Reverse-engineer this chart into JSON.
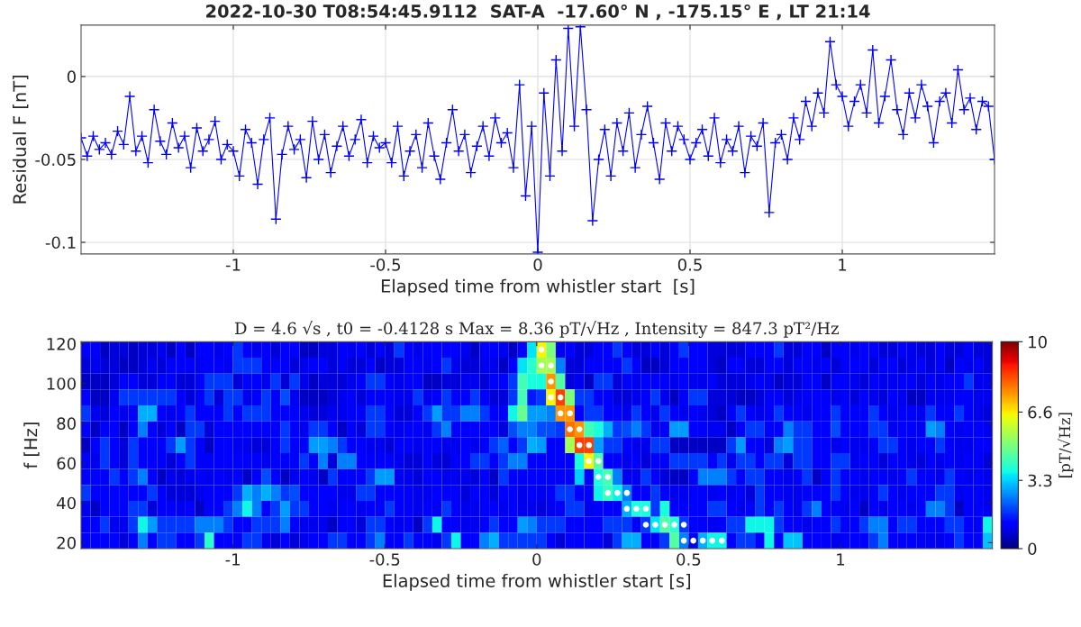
{
  "chart_data": [
    {
      "type": "line",
      "title": "2022-10-30 T08:54:45.9112  SAT-A  -17.60° N , -175.15° E , LT 21:14",
      "xlabel": "Elapsed time from whistler start  [s]",
      "ylabel": "Residual F [nT]",
      "x": [
        -1.5,
        -1.48,
        -1.46,
        -1.44,
        -1.42,
        -1.4,
        -1.38,
        -1.36,
        -1.34,
        -1.32,
        -1.3,
        -1.28,
        -1.26,
        -1.24,
        -1.22,
        -1.2,
        -1.18,
        -1.16,
        -1.14,
        -1.12,
        -1.1,
        -1.08,
        -1.06,
        -1.04,
        -1.02,
        -1.0,
        -0.98,
        -0.96,
        -0.94,
        -0.92,
        -0.9,
        -0.88,
        -0.86,
        -0.84,
        -0.82,
        -0.8,
        -0.78,
        -0.76,
        -0.74,
        -0.72,
        -0.7,
        -0.68,
        -0.66,
        -0.64,
        -0.62,
        -0.6,
        -0.58,
        -0.56,
        -0.54,
        -0.52,
        -0.5,
        -0.48,
        -0.46,
        -0.44,
        -0.42,
        -0.4,
        -0.38,
        -0.36,
        -0.34,
        -0.32,
        -0.3,
        -0.28,
        -0.26,
        -0.24,
        -0.22,
        -0.2,
        -0.18,
        -0.16,
        -0.14,
        -0.12,
        -0.1,
        -0.08,
        -0.06,
        -0.04,
        -0.02,
        0,
        0.02,
        0.04,
        0.06,
        0.08,
        0.1,
        0.12,
        0.14,
        0.16,
        0.18,
        0.2,
        0.22,
        0.24,
        0.26,
        0.28,
        0.3,
        0.32,
        0.34,
        0.36,
        0.38,
        0.4,
        0.42,
        0.44,
        0.46,
        0.48,
        0.5,
        0.52,
        0.54,
        0.56,
        0.58,
        0.6,
        0.62,
        0.64,
        0.66,
        0.68,
        0.7,
        0.72,
        0.74,
        0.76,
        0.78,
        0.8,
        0.82,
        0.84,
        0.86,
        0.88,
        0.9,
        0.92,
        0.94,
        0.96,
        0.98,
        1.0,
        1.02,
        1.04,
        1.06,
        1.08,
        1.1,
        1.12,
        1.14,
        1.16,
        1.18,
        1.2,
        1.22,
        1.24,
        1.26,
        1.28,
        1.3,
        1.32,
        1.34,
        1.36,
        1.38,
        1.4,
        1.42,
        1.44,
        1.46,
        1.48,
        1.5
      ],
      "series": [
        {
          "color": "#0000ff",
          "marker": "cross",
          "values": [
            -0.037,
            -0.048,
            -0.036,
            -0.044,
            -0.04,
            -0.047,
            -0.033,
            -0.041,
            -0.012,
            -0.045,
            -0.036,
            -0.052,
            -0.02,
            -0.039,
            -0.047,
            -0.028,
            -0.043,
            -0.036,
            -0.055,
            -0.031,
            -0.045,
            -0.038,
            -0.027,
            -0.05,
            -0.041,
            -0.045,
            -0.06,
            -0.032,
            -0.04,
            -0.065,
            -0.038,
            -0.025,
            -0.086,
            -0.047,
            -0.03,
            -0.044,
            -0.038,
            -0.061,
            -0.027,
            -0.05,
            -0.035,
            -0.058,
            -0.042,
            -0.03,
            -0.048,
            -0.038,
            -0.026,
            -0.052,
            -0.036,
            -0.043,
            -0.04,
            -0.052,
            -0.03,
            -0.06,
            -0.045,
            -0.035,
            -0.055,
            -0.028,
            -0.048,
            -0.062,
            -0.04,
            -0.02,
            -0.045,
            -0.035,
            -0.058,
            -0.042,
            -0.03,
            -0.048,
            -0.025,
            -0.04,
            -0.034,
            -0.055,
            -0.005,
            -0.072,
            -0.03,
            -0.106,
            -0.01,
            -0.06,
            0.01,
            -0.045,
            0.029,
            -0.03,
            0.03,
            -0.02,
            -0.087,
            -0.05,
            -0.032,
            -0.06,
            -0.028,
            -0.045,
            -0.022,
            -0.055,
            -0.035,
            -0.018,
            -0.04,
            -0.062,
            -0.028,
            -0.045,
            -0.03,
            -0.038,
            -0.05,
            -0.04,
            -0.032,
            -0.048,
            -0.025,
            -0.052,
            -0.038,
            -0.045,
            -0.03,
            -0.058,
            -0.036,
            -0.042,
            -0.028,
            -0.082,
            -0.04,
            -0.035,
            -0.05,
            -0.025,
            -0.038,
            -0.015,
            -0.03,
            -0.01,
            -0.022,
            0.021,
            -0.005,
            -0.012,
            -0.03,
            -0.015,
            -0.005,
            -0.022,
            0.016,
            -0.028,
            -0.012,
            0.01,
            -0.02,
            -0.035,
            -0.01,
            -0.025,
            -0.005,
            -0.018,
            -0.04,
            -0.015,
            -0.01,
            -0.028,
            0.004,
            -0.02,
            -0.013,
            -0.032,
            -0.015,
            -0.018,
            -0.05
          ]
        }
      ],
      "xlim": [
        -1.5,
        1.5
      ],
      "xticks": [
        -1,
        -0.5,
        0,
        0.5,
        1
      ],
      "ylim": [
        -0.107,
        0.031
      ],
      "yticks": [
        {
          "value": -0.1,
          "label": "-0.1"
        },
        {
          "value": -0.05,
          "label": "-0.05"
        },
        0
      ],
      "grid": true
    },
    {
      "type": "heatmap",
      "title": "D = 4.6 √s , t0 = -0.4128 s Max = 8.36 pT/√Hz , Intensity = 847.3 pT²/Hz",
      "xlabel": "Elapsed time from whistler start [s]",
      "ylabel": "f [Hz]",
      "clabel": "[pT/√Hz]",
      "xlim": [
        -1.5,
        1.5
      ],
      "xticks": [
        -1,
        -0.5,
        0,
        0.5,
        1
      ],
      "ylim": [
        17,
        121
      ],
      "yticks": [
        20,
        40,
        60,
        80,
        100,
        120
      ],
      "clim": [
        0,
        10
      ],
      "cticks": [
        0,
        3.3,
        6.6,
        10
      ],
      "grid": false,
      "cells": [
        [
          1.2,
          1.2,
          0.6,
          0.8,
          0.8,
          0.6,
          0.8,
          0.8,
          1.0,
          0.6,
          1.2,
          0.6,
          1.2,
          1.2,
          1.0,
          1.2,
          1.8,
          1.2,
          1.0,
          1.2,
          0.8,
          1.2,
          1.2,
          0.6,
          0.6,
          0.8,
          0.8,
          1.2,
          1.0,
          1.2,
          0.8,
          1.2,
          0.8,
          1.8,
          1.2,
          1.0,
          1.2,
          1.2,
          1.2,
          1.2,
          1.0,
          0.6,
          1.2,
          1.2,
          1.0,
          0.6,
          1.2,
          3.5,
          6.5,
          5.0,
          1.0,
          1.2,
          0.8,
          0.8,
          1.2,
          1.2,
          1.8,
          1.2,
          0.8,
          0.8,
          1.2,
          0.8,
          1.2,
          1.8,
          1.2,
          1.2,
          0.8,
          0.8,
          0.8,
          0.8,
          1.2,
          1.2,
          1.2,
          1.8,
          0.8,
          0.8,
          1.2,
          1.2,
          0.6,
          1.2,
          1.2,
          1.0,
          1.2,
          1.2,
          0.8,
          0.8,
          1.2,
          1.0,
          0.8,
          0.8,
          1.2,
          0.8,
          0.8,
          1.2,
          0.8,
          0.8
        ],
        [
          0.8,
          1.0,
          0.8,
          0.8,
          0.6,
          0.6,
          0.8,
          1.0,
          0.8,
          1.2,
          1.2,
          1.2,
          1.0,
          1.2,
          1.2,
          1.0,
          1.8,
          1.8,
          1.8,
          1.2,
          1.2,
          1.2,
          0.8,
          1.0,
          1.2,
          1.2,
          0.8,
          1.2,
          0.8,
          0.8,
          1.2,
          0.6,
          0.8,
          0.8,
          1.2,
          1.2,
          1.0,
          1.2,
          1.8,
          1.0,
          0.8,
          0.8,
          1.0,
          1.0,
          0.6,
          1.2,
          3.5,
          4.0,
          5.5,
          5.5,
          2.5,
          0.8,
          0.8,
          1.2,
          1.2,
          1.2,
          1.2,
          1.8,
          1.2,
          0.6,
          0.6,
          0.8,
          1.2,
          1.2,
          1.2,
          1.2,
          0.8,
          0.6,
          1.2,
          1.2,
          0.8,
          0.8,
          1.2,
          1.2,
          0.8,
          1.2,
          1.2,
          1.0,
          1.2,
          0.8,
          1.2,
          1.2,
          1.2,
          0.8,
          1.2,
          1.2,
          0.8,
          1.0,
          1.2,
          0.8,
          1.2,
          0.6,
          1.2,
          1.0,
          1.2,
          0.8
        ],
        [
          0.6,
          0.6,
          0.6,
          0.8,
          1.2,
          1.2,
          0.8,
          0.8,
          1.2,
          1.2,
          0.8,
          0.8,
          1.2,
          1.8,
          1.8,
          1.8,
          0.8,
          1.2,
          1.2,
          1.0,
          1.8,
          0.8,
          1.8,
          1.0,
          0.6,
          0.8,
          0.8,
          0.8,
          1.0,
          1.2,
          1.8,
          1.8,
          1.2,
          1.0,
          1.2,
          1.2,
          0.6,
          0.6,
          0.8,
          0.8,
          1.0,
          1.0,
          0.8,
          1.2,
          1.2,
          1.8,
          4.3,
          3.8,
          3.8,
          7.5,
          4.5,
          0.8,
          1.0,
          0.6,
          1.8,
          1.8,
          0.8,
          1.2,
          1.0,
          1.2,
          1.2,
          1.2,
          1.0,
          1.2,
          1.0,
          1.0,
          1.2,
          0.8,
          0.8,
          0.8,
          1.0,
          1.2,
          1.0,
          0.6,
          0.8,
          0.8,
          1.2,
          1.2,
          0.6,
          1.2,
          1.2,
          1.0,
          0.8,
          1.2,
          1.0,
          1.0,
          1.2,
          1.2,
          0.8,
          1.2,
          1.0,
          1.2,
          1.2,
          1.8,
          1.0,
          1.0
        ],
        [
          1.2,
          0.6,
          0.6,
          1.0,
          1.8,
          1.8,
          1.8,
          1.8,
          1.8,
          1.8,
          1.2,
          0.8,
          1.2,
          1.8,
          0.8,
          1.8,
          1.8,
          1.0,
          1.2,
          1.8,
          1.2,
          2.0,
          1.0,
          0.6,
          0.6,
          0.6,
          0.8,
          1.0,
          1.2,
          0.8,
          1.2,
          1.2,
          1.2,
          1.0,
          1.0,
          1.8,
          1.0,
          1.2,
          1.8,
          1.2,
          1.2,
          1.8,
          1.2,
          0.8,
          0.8,
          1.8,
          4.3,
          1.5,
          1.8,
          6.5,
          8.4,
          5.0,
          1.8,
          1.8,
          1.2,
          1.2,
          0.8,
          0.8,
          1.0,
          1.2,
          1.8,
          1.0,
          0.6,
          1.2,
          1.8,
          1.8,
          0.8,
          0.8,
          0.8,
          0.6,
          0.6,
          0.8,
          1.2,
          1.2,
          0.8,
          1.0,
          1.2,
          1.2,
          1.2,
          1.0,
          1.2,
          0.8,
          1.2,
          1.0,
          0.8,
          1.2,
          1.0,
          0.6,
          0.6,
          1.0,
          1.0,
          1.0,
          1.2,
          1.2,
          1.0,
          1.0
        ],
        [
          1.8,
          1.0,
          0.8,
          1.2,
          1.0,
          1.2,
          3.0,
          3.0,
          1.2,
          1.0,
          1.2,
          1.8,
          1.2,
          1.2,
          1.2,
          1.8,
          1.2,
          1.8,
          1.8,
          1.8,
          1.2,
          1.2,
          1.2,
          1.0,
          0.8,
          0.8,
          1.0,
          1.0,
          1.2,
          1.2,
          1.8,
          1.8,
          1.2,
          0.8,
          0.8,
          1.2,
          1.8,
          2.8,
          1.8,
          1.8,
          2.5,
          2.5,
          1.8,
          1.2,
          1.2,
          3.7,
          4.8,
          2.8,
          2.8,
          2.5,
          7.5,
          7.5,
          1.2,
          1.8,
          1.8,
          1.2,
          1.2,
          1.0,
          1.8,
          1.2,
          1.0,
          1.8,
          1.2,
          1.0,
          1.2,
          1.0,
          0.8,
          0.6,
          1.2,
          1.8,
          1.2,
          1.0,
          1.2,
          1.8,
          1.2,
          1.2,
          1.0,
          1.2,
          1.2,
          1.8,
          1.2,
          1.2,
          1.2,
          1.8,
          1.2,
          1.0,
          1.2,
          1.2,
          1.0,
          1.8,
          1.2,
          1.2,
          1.8,
          1.2,
          1.0,
          0.8
        ],
        [
          1.2,
          0.6,
          1.2,
          1.2,
          0.6,
          1.2,
          2.5,
          1.2,
          0.8,
          1.2,
          0.6,
          1.8,
          1.8,
          0.8,
          1.2,
          1.2,
          1.2,
          1.2,
          1.2,
          1.2,
          1.2,
          1.8,
          1.2,
          1.0,
          1.8,
          1.8,
          1.2,
          0.6,
          1.2,
          0.8,
          1.8,
          1.8,
          1.2,
          1.0,
          1.2,
          1.2,
          1.0,
          1.8,
          2.5,
          1.2,
          1.2,
          1.2,
          1.2,
          1.2,
          0.8,
          2.0,
          2.5,
          2.5,
          2.0,
          2.0,
          1.8,
          7.9,
          7.5,
          4.3,
          3.8,
          3.0,
          1.8,
          2.0,
          2.5,
          1.8,
          1.0,
          1.2,
          2.8,
          2.8,
          1.2,
          1.2,
          1.0,
          1.0,
          0.6,
          1.2,
          1.8,
          1.8,
          1.2,
          1.2,
          2.5,
          1.8,
          1.8,
          1.2,
          1.2,
          2.0,
          1.2,
          1.2,
          1.2,
          1.8,
          1.8,
          1.0,
          1.2,
          1.2,
          1.0,
          2.8,
          2.5,
          1.2,
          1.0,
          1.2,
          1.2,
          1.0
        ],
        [
          0.6,
          1.2,
          1.8,
          1.2,
          0.8,
          1.8,
          1.2,
          1.2,
          1.2,
          1.8,
          2.8,
          1.8,
          1.2,
          0.6,
          1.2,
          1.2,
          1.0,
          1.0,
          0.8,
          0.8,
          1.2,
          1.8,
          1.2,
          1.2,
          2.8,
          2.8,
          2.5,
          1.8,
          1.2,
          1.2,
          1.0,
          1.0,
          0.8,
          1.2,
          1.2,
          1.0,
          1.2,
          1.2,
          1.0,
          1.0,
          1.2,
          1.0,
          1.2,
          1.8,
          2.2,
          1.2,
          1.8,
          3.0,
          2.8,
          1.2,
          1.2,
          5.5,
          8.4,
          8.4,
          2.8,
          1.8,
          1.8,
          1.2,
          1.0,
          1.0,
          1.8,
          1.8,
          0.6,
          0.6,
          0.6,
          0.6,
          0.6,
          0.6,
          1.8,
          2.8,
          1.2,
          1.2,
          0.8,
          2.5,
          2.8,
          1.8,
          1.8,
          1.2,
          1.2,
          1.0,
          1.2,
          1.0,
          1.0,
          1.2,
          1.8,
          1.8,
          1.2,
          1.0,
          1.2,
          1.2,
          1.8,
          1.2,
          1.0,
          1.0,
          1.2,
          1.2
        ],
        [
          1.2,
          1.0,
          1.8,
          1.2,
          0.8,
          1.8,
          1.2,
          1.2,
          1.2,
          0.8,
          1.2,
          1.8,
          1.2,
          1.2,
          1.2,
          1.2,
          1.2,
          1.2,
          1.2,
          1.0,
          1.2,
          1.2,
          1.2,
          1.8,
          1.2,
          2.5,
          0.8,
          2.5,
          2.5,
          1.2,
          1.2,
          1.2,
          1.2,
          1.0,
          0.8,
          0.8,
          1.2,
          0.8,
          0.8,
          1.2,
          1.2,
          1.8,
          1.8,
          1.2,
          1.8,
          2.5,
          2.5,
          1.2,
          1.2,
          1.2,
          1.2,
          1.2,
          3.8,
          6.5,
          4.5,
          1.2,
          1.2,
          1.0,
          1.2,
          0.8,
          1.2,
          1.2,
          1.8,
          1.8,
          1.8,
          1.8,
          1.2,
          1.8,
          1.0,
          1.8,
          1.8,
          1.2,
          1.8,
          1.8,
          0.8,
          1.8,
          1.8,
          1.2,
          1.2,
          1.8,
          1.8,
          1.0,
          1.2,
          1.2,
          0.8,
          1.2,
          1.2,
          1.0,
          0.8,
          1.2,
          1.0,
          1.2,
          1.0,
          1.2,
          1.2,
          0.8
        ],
        [
          1.2,
          1.2,
          1.2,
          1.8,
          1.2,
          1.8,
          2.5,
          1.2,
          0.6,
          1.0,
          0.8,
          1.0,
          1.2,
          1.0,
          1.2,
          1.0,
          1.2,
          0.6,
          1.2,
          2.0,
          1.2,
          0.6,
          1.0,
          1.2,
          1.0,
          0.6,
          1.8,
          1.2,
          1.2,
          1.2,
          1.8,
          2.8,
          2.8,
          1.0,
          1.0,
          0.8,
          1.2,
          1.2,
          1.0,
          1.0,
          1.0,
          0.8,
          1.2,
          0.6,
          1.8,
          1.2,
          1.2,
          1.2,
          1.2,
          1.2,
          1.2,
          1.2,
          3.3,
          1.2,
          3.8,
          4.3,
          2.5,
          1.0,
          1.0,
          1.8,
          1.2,
          0.8,
          0.6,
          0.6,
          1.2,
          2.5,
          2.5,
          2.5,
          1.8,
          1.2,
          1.8,
          1.8,
          1.2,
          1.2,
          1.0,
          1.2,
          1.8,
          0.6,
          1.2,
          1.8,
          1.2,
          1.2,
          1.0,
          1.2,
          1.2,
          1.0,
          1.2,
          1.8,
          1.2,
          1.2,
          1.0,
          1.8,
          1.2,
          1.0,
          1.2,
          1.0
        ],
        [
          1.8,
          1.2,
          1.2,
          1.2,
          1.2,
          1.2,
          1.2,
          1.8,
          1.2,
          0.8,
          0.8,
          0.8,
          1.0,
          1.2,
          1.2,
          1.2,
          1.8,
          3.0,
          2.5,
          3.0,
          2.5,
          1.8,
          2.0,
          1.2,
          1.2,
          1.2,
          1.2,
          1.0,
          1.0,
          1.8,
          1.8,
          1.2,
          1.2,
          1.2,
          1.2,
          1.0,
          1.0,
          1.2,
          1.2,
          1.2,
          0.8,
          1.2,
          1.2,
          0.8,
          1.2,
          1.2,
          1.0,
          1.2,
          1.0,
          1.2,
          1.8,
          1.8,
          1.2,
          1.2,
          3.7,
          4.2,
          3.6,
          2.5,
          1.2,
          1.2,
          1.8,
          1.2,
          1.0,
          1.0,
          1.2,
          1.2,
          1.0,
          1.2,
          1.0,
          1.2,
          0.8,
          1.8,
          1.2,
          1.2,
          1.0,
          1.0,
          1.2,
          1.2,
          1.2,
          1.8,
          1.2,
          1.0,
          1.0,
          1.2,
          1.8,
          1.2,
          1.0,
          1.2,
          1.2,
          1.2,
          1.8,
          1.8,
          1.0,
          1.2,
          1.2,
          1.0
        ],
        [
          1.0,
          0.6,
          1.2,
          1.2,
          1.2,
          1.8,
          1.8,
          0.8,
          1.2,
          1.2,
          1.0,
          1.2,
          0.6,
          1.2,
          1.2,
          1.8,
          2.5,
          3.7,
          2.5,
          1.2,
          1.8,
          2.8,
          1.8,
          1.8,
          1.2,
          1.2,
          1.0,
          1.2,
          1.2,
          1.0,
          1.2,
          1.2,
          1.8,
          1.2,
          1.2,
          1.0,
          1.2,
          1.0,
          1.8,
          1.2,
          1.0,
          1.0,
          1.2,
          1.2,
          1.0,
          1.2,
          1.0,
          1.0,
          0.8,
          1.0,
          1.2,
          1.8,
          1.8,
          1.0,
          1.2,
          1.2,
          1.2,
          3.0,
          3.8,
          3.8,
          1.8,
          3.8,
          1.2,
          1.2,
          1.2,
          1.2,
          1.8,
          1.8,
          1.2,
          1.0,
          1.2,
          1.8,
          1.2,
          1.8,
          1.2,
          1.0,
          1.8,
          2.5,
          1.2,
          1.2,
          1.0,
          1.2,
          0.6,
          1.2,
          1.0,
          1.2,
          1.2,
          1.0,
          1.2,
          2.5,
          2.5,
          1.8,
          0.6,
          1.2,
          1.2,
          1.0
        ],
        [
          1.2,
          1.2,
          1.8,
          1.0,
          1.0,
          1.8,
          3.7,
          2.8,
          1.8,
          1.8,
          1.8,
          1.8,
          2.5,
          2.5,
          2.5,
          1.8,
          1.2,
          1.2,
          1.8,
          1.8,
          1.8,
          2.5,
          1.2,
          1.0,
          1.0,
          1.0,
          0.6,
          1.2,
          1.2,
          0.8,
          1.8,
          1.8,
          1.2,
          1.0,
          1.2,
          0.6,
          1.8,
          3.7,
          1.2,
          1.2,
          1.0,
          1.0,
          1.2,
          1.8,
          1.2,
          1.2,
          2.8,
          2.5,
          1.8,
          1.8,
          1.8,
          1.2,
          1.2,
          1.2,
          1.2,
          1.8,
          1.8,
          1.8,
          1.2,
          1.8,
          3.5,
          4.5,
          4.0,
          1.8,
          1.2,
          1.2,
          1.0,
          1.2,
          1.8,
          1.8,
          3.7,
          3.7,
          3.7,
          1.8,
          1.2,
          1.2,
          1.0,
          1.2,
          1.2,
          1.8,
          1.2,
          1.2,
          1.8,
          2.5,
          2.5,
          1.2,
          1.8,
          1.8,
          1.2,
          1.2,
          1.2,
          1.8,
          1.8,
          1.2,
          1.2,
          3.7
        ],
        [
          1.2,
          1.2,
          1.2,
          1.2,
          0.8,
          1.2,
          2.5,
          1.2,
          1.8,
          1.8,
          1.2,
          1.2,
          1.8,
          4.0,
          1.2,
          1.2,
          1.2,
          1.8,
          1.8,
          1.0,
          0.8,
          1.2,
          0.8,
          1.0,
          1.2,
          1.2,
          1.8,
          1.8,
          1.2,
          1.2,
          1.8,
          2.5,
          1.2,
          1.2,
          1.8,
          1.2,
          1.2,
          1.0,
          1.8,
          3.7,
          1.2,
          1.2,
          2.5,
          3.0,
          1.8,
          1.8,
          1.8,
          1.8,
          1.8,
          1.2,
          0.8,
          1.2,
          1.2,
          1.2,
          1.2,
          0.8,
          1.8,
          3.0,
          3.0,
          1.2,
          1.2,
          1.8,
          4.5,
          2.5,
          1.0,
          3.0,
          3.7,
          3.7,
          1.2,
          1.8,
          1.8,
          1.2,
          3.7,
          1.2,
          3.2,
          3.2,
          1.2,
          1.2,
          1.2,
          1.0,
          1.2,
          1.2,
          1.2,
          1.8,
          2.5,
          1.2,
          1.2,
          1.2,
          1.0,
          1.0,
          1.0,
          1.2,
          1.8,
          1.2,
          1.2,
          3.2
        ]
      ],
      "series": [
        {
          "type": "scatter",
          "color": "#ffffff",
          "marker": "circle",
          "x": [
            0.015625,
            0.015625,
            0.046875,
            0.046875,
            0.046875,
            0.078125,
            0.078125,
            0.109375,
            0.109375,
            0.140625,
            0.140625,
            0.171875,
            0.171875,
            0.203125,
            0.203125,
            0.234375,
            0.234375,
            0.265625,
            0.296875,
            0.296875,
            0.328125,
            0.359375,
            0.359375,
            0.390625,
            0.421875,
            0.453125,
            0.484375,
            0.484375,
            0.515625,
            0.546875,
            0.578125,
            0.609375
          ],
          "values": [
            117,
            109,
            109,
            101,
            93,
            93,
            85,
            85,
            77,
            77,
            69,
            69,
            61,
            61,
            53,
            53,
            45,
            45,
            45,
            37,
            37,
            37,
            29,
            29,
            29,
            29,
            29,
            21,
            21,
            21,
            21,
            21
          ]
        }
      ]
    }
  ]
}
